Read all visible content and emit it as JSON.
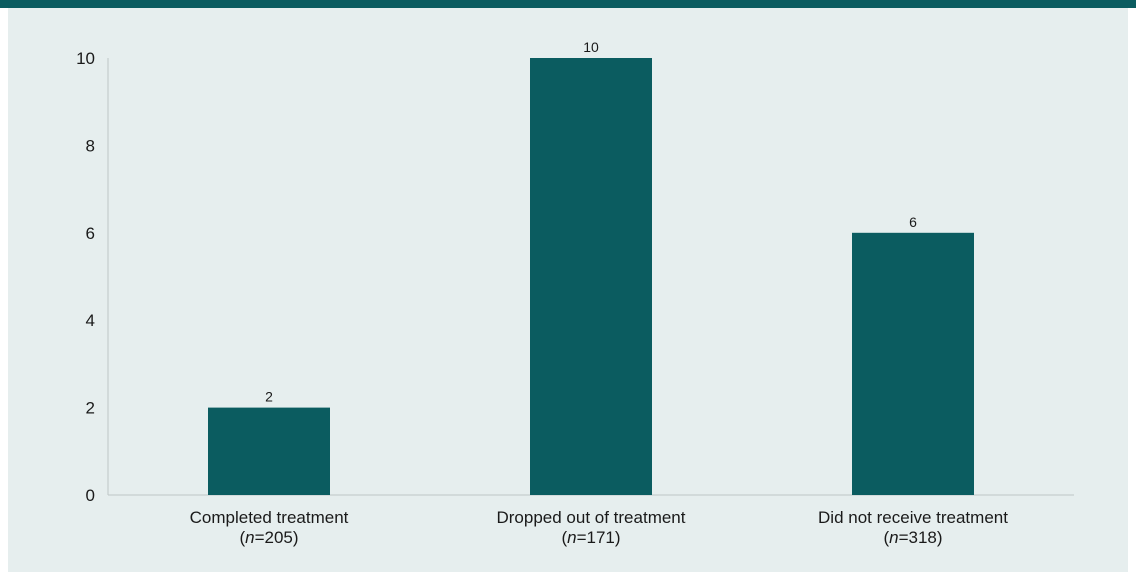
{
  "colors": {
    "accent": "#0b5c60",
    "panel_background": "#e6eeee",
    "axis": "#bfc6c6"
  },
  "chart_data": {
    "type": "bar",
    "categories": [
      "Completed treatment",
      "Dropped out of treatment",
      "Did not receive treatment"
    ],
    "category_sublabels": [
      {
        "prefix": "(",
        "italic": "n",
        "suffix": "=205)"
      },
      {
        "prefix": "(",
        "italic": "n",
        "suffix": "=171)"
      },
      {
        "prefix": "(",
        "italic": "n",
        "suffix": "=318)"
      }
    ],
    "values": [
      2,
      10,
      6
    ],
    "data_labels": [
      "2",
      "10",
      "6"
    ],
    "yticks": [
      0,
      2,
      4,
      6,
      8,
      10
    ],
    "ylim": [
      0,
      10
    ],
    "title": "",
    "xlabel": "",
    "ylabel": "",
    "grid": false,
    "legend": "none"
  }
}
